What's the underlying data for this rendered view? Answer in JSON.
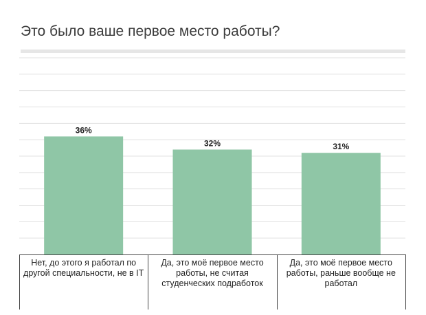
{
  "chart_data": {
    "type": "bar",
    "title": "Это было ваше первое место работы?",
    "categories": [
      "Нет, до этого я работал по другой специальности, не в IT",
      "Да, это моё первое место работы, не считая студенческих подработок",
      "Да, это моё первое место работы, раньше вообще не работал"
    ],
    "values": [
      36,
      32,
      31
    ],
    "value_labels": [
      "36%",
      "32%",
      "31%"
    ],
    "ylim": [
      0,
      60
    ],
    "grid": true,
    "bar_color": "#8fc6a6",
    "grid_color": "#e0e0e0",
    "axis_color": "#444444"
  }
}
